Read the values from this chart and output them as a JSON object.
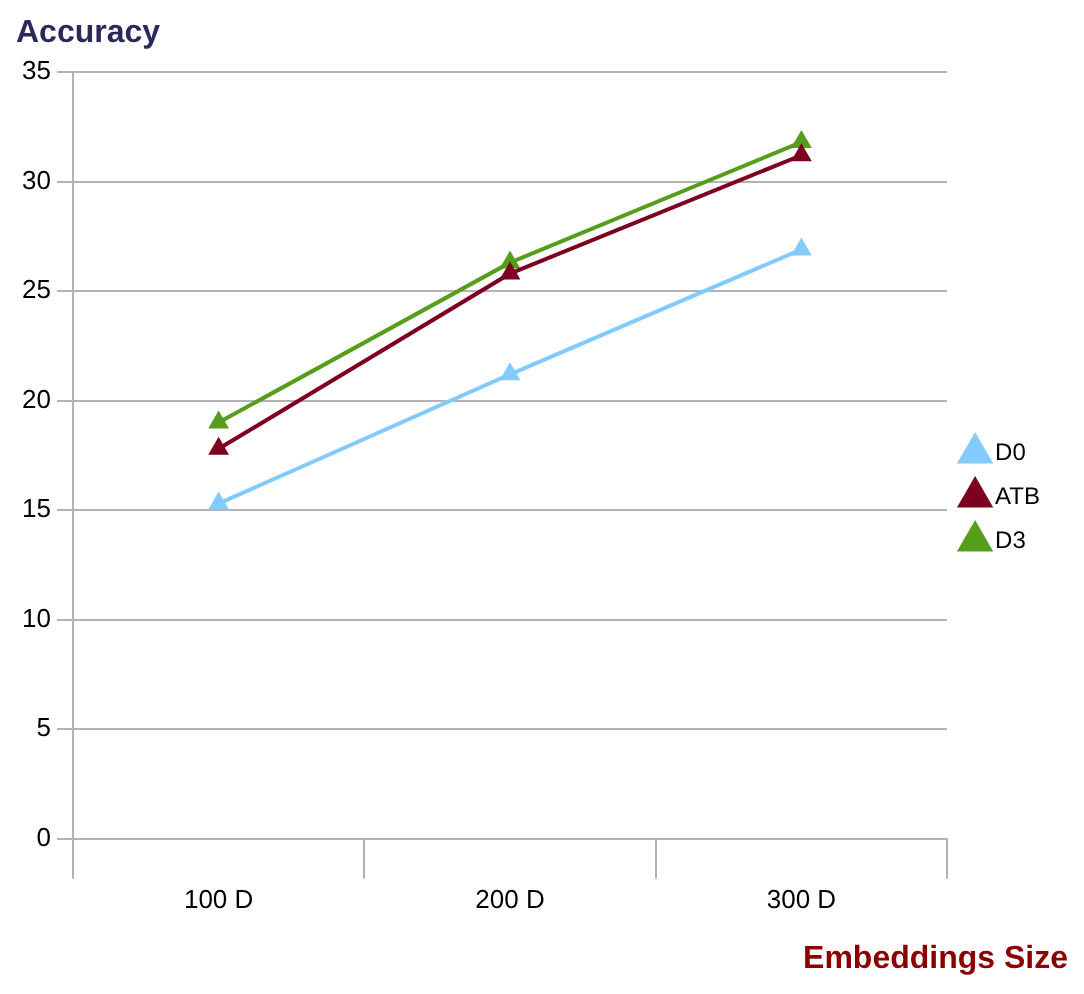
{
  "chart_data": {
    "type": "line",
    "ylabel": "Accuracy",
    "xlabel": "Embeddings Size",
    "categories": [
      "100 D",
      "200 D",
      "300 D"
    ],
    "series": [
      {
        "name": "D0",
        "color": "#83caff",
        "values": [
          15.3,
          21.2,
          26.9
        ]
      },
      {
        "name": "ATB",
        "color": "#7e0021",
        "values": [
          17.8,
          25.8,
          31.2
        ]
      },
      {
        "name": "D3",
        "color": "#579d1c",
        "values": [
          19.0,
          26.3,
          31.8
        ]
      }
    ],
    "ylim": [
      0,
      35
    ],
    "yticks": [
      0,
      5,
      10,
      15,
      20,
      25,
      30,
      35
    ],
    "grid": "y",
    "legend": "right",
    "marker": "triangle",
    "line_style": "solid"
  }
}
